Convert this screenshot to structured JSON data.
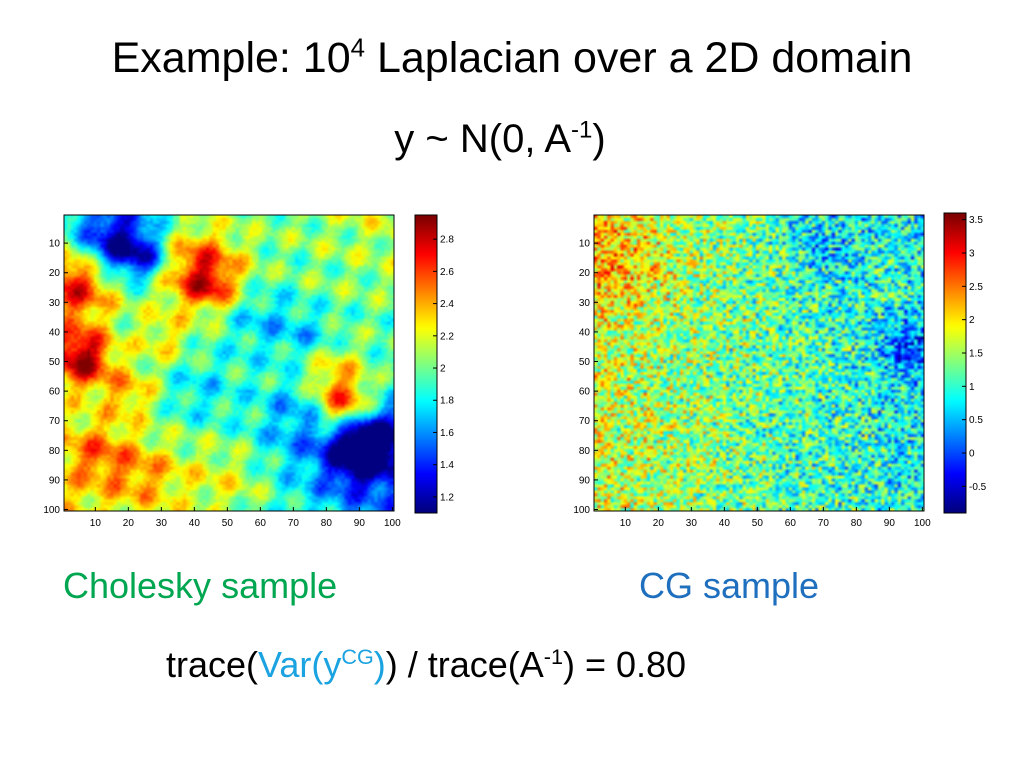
{
  "slide": {
    "title_main": "Example: 10",
    "title_exp": "4",
    "title_rest": " Laplacian over a 2D domain",
    "subtitle_main": "y ~ N(0, A",
    "subtitle_exp": "-1",
    "subtitle_close": ")"
  },
  "captions": {
    "cholesky": "Cholesky sample",
    "cg": "CG sample"
  },
  "formula": {
    "part1": "trace(",
    "var_open": "Var(y",
    "var_sup": "CG",
    "var_close": ")",
    "part2": ") / trace(A",
    "sup2": "-1",
    "part3": ") = 0.80"
  },
  "chart_data": [
    {
      "type": "heatmap",
      "colormap": "jet",
      "title": "",
      "xlabel": "",
      "ylabel": "",
      "xlim": [
        0.5,
        100.5
      ],
      "ylim": [
        0.5,
        100.5
      ],
      "grid_size": 100,
      "x_ticks": [
        "10",
        "20",
        "30",
        "40",
        "50",
        "60",
        "70",
        "80",
        "90",
        "100"
      ],
      "y_ticks": [
        "10",
        "20",
        "30",
        "40",
        "50",
        "60",
        "70",
        "80",
        "90",
        "100"
      ],
      "colorbar_range": [
        1.1,
        2.95
      ],
      "colorbar_ticks": [
        "1.2",
        "1.4",
        "1.6",
        "1.8",
        "2",
        "2.2",
        "2.4",
        "2.6",
        "2.8"
      ],
      "value_range_observed": [
        1.1,
        2.95
      ]
    },
    {
      "type": "heatmap",
      "colormap": "jet",
      "title": "",
      "xlabel": "",
      "ylabel": "",
      "xlim": [
        0.5,
        100.5
      ],
      "ylim": [
        0.5,
        100.5
      ],
      "grid_size": 100,
      "x_ticks": [
        "10",
        "20",
        "30",
        "40",
        "50",
        "60",
        "70",
        "80",
        "90",
        "100"
      ],
      "y_ticks": [
        "10",
        "20",
        "30",
        "40",
        "50",
        "60",
        "70",
        "80",
        "90",
        "100"
      ],
      "colorbar_range": [
        -0.9,
        3.6
      ],
      "colorbar_ticks": [
        "-0.5",
        "0",
        "0.5",
        "1",
        "1.5",
        "2",
        "2.5",
        "3",
        "3.5"
      ],
      "value_range_observed": [
        -0.9,
        3.6
      ]
    }
  ]
}
